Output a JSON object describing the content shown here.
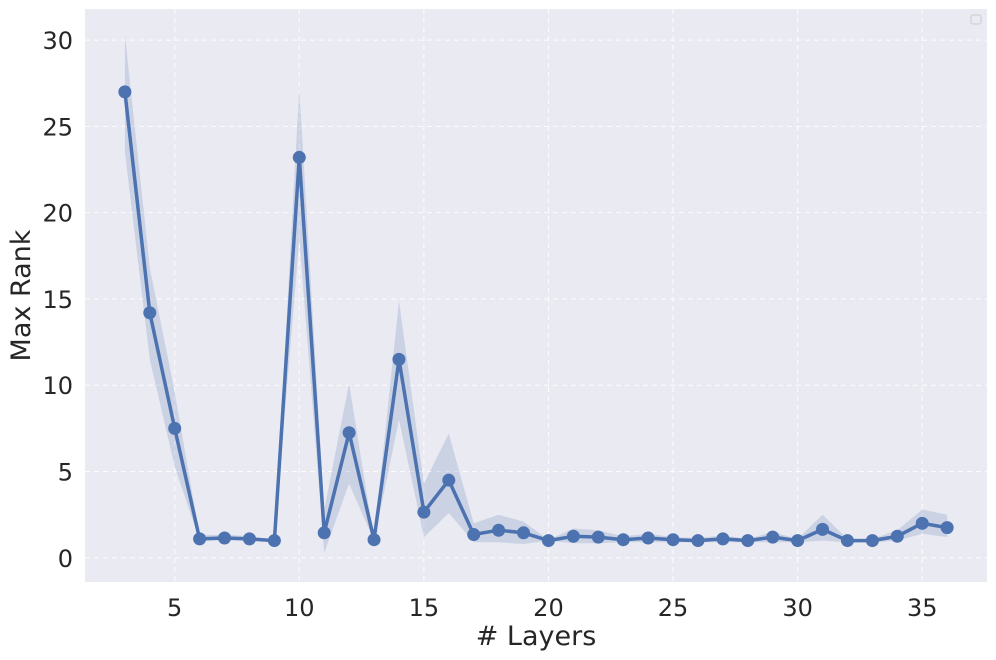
{
  "chart_data": {
    "type": "line",
    "title": "",
    "xlabel": "# Layers",
    "ylabel": "Max Rank",
    "xlim": [
      1.4,
      37.6
    ],
    "ylim": [
      -1.4,
      31.8
    ],
    "xticks": [
      5,
      10,
      15,
      20,
      25,
      30,
      35
    ],
    "yticks": [
      0,
      5,
      10,
      15,
      20,
      25,
      30
    ],
    "grid": true,
    "legend": "top-right (empty)",
    "colors": {
      "plot_bg": "#eaeaf2",
      "line": "#4c72b0",
      "band": "#4c72b0",
      "text": "#262626"
    },
    "series": [
      {
        "x": [
          3,
          4,
          5,
          6,
          7,
          8,
          9,
          10,
          11,
          12,
          13,
          14,
          15,
          16,
          17,
          18,
          19,
          20,
          21,
          22,
          23,
          24,
          25,
          26,
          27,
          28,
          29,
          30,
          31,
          32,
          33,
          34,
          35,
          36
        ],
        "values": [
          27.0,
          14.2,
          7.5,
          1.1,
          1.15,
          1.1,
          1.0,
          23.2,
          1.45,
          7.25,
          1.05,
          11.5,
          2.65,
          4.5,
          1.35,
          1.6,
          1.45,
          1.0,
          1.25,
          1.2,
          1.05,
          1.15,
          1.05,
          1.0,
          1.1,
          1.0,
          1.2,
          1.0,
          1.65,
          1.0,
          1.0,
          1.25,
          2.0,
          1.75
        ],
        "lower": [
          23.5,
          11.5,
          5.3,
          1.0,
          1.0,
          1.0,
          1.0,
          18.5,
          0.3,
          4.3,
          1.0,
          8.0,
          1.2,
          2.6,
          0.9,
          0.9,
          0.8,
          1.0,
          0.85,
          0.85,
          0.9,
          0.9,
          0.9,
          0.9,
          0.9,
          0.9,
          0.9,
          0.9,
          1.0,
          0.9,
          0.9,
          1.0,
          1.4,
          1.2
        ],
        "upper": [
          30.3,
          16.8,
          9.6,
          1.3,
          1.35,
          1.25,
          1.05,
          27.2,
          2.8,
          10.1,
          1.1,
          14.9,
          4.3,
          7.2,
          2.0,
          2.5,
          2.1,
          1.05,
          1.7,
          1.6,
          1.25,
          1.4,
          1.2,
          1.15,
          1.3,
          1.1,
          1.5,
          1.1,
          2.5,
          1.1,
          1.1,
          1.6,
          2.8,
          2.5
        ]
      }
    ]
  }
}
